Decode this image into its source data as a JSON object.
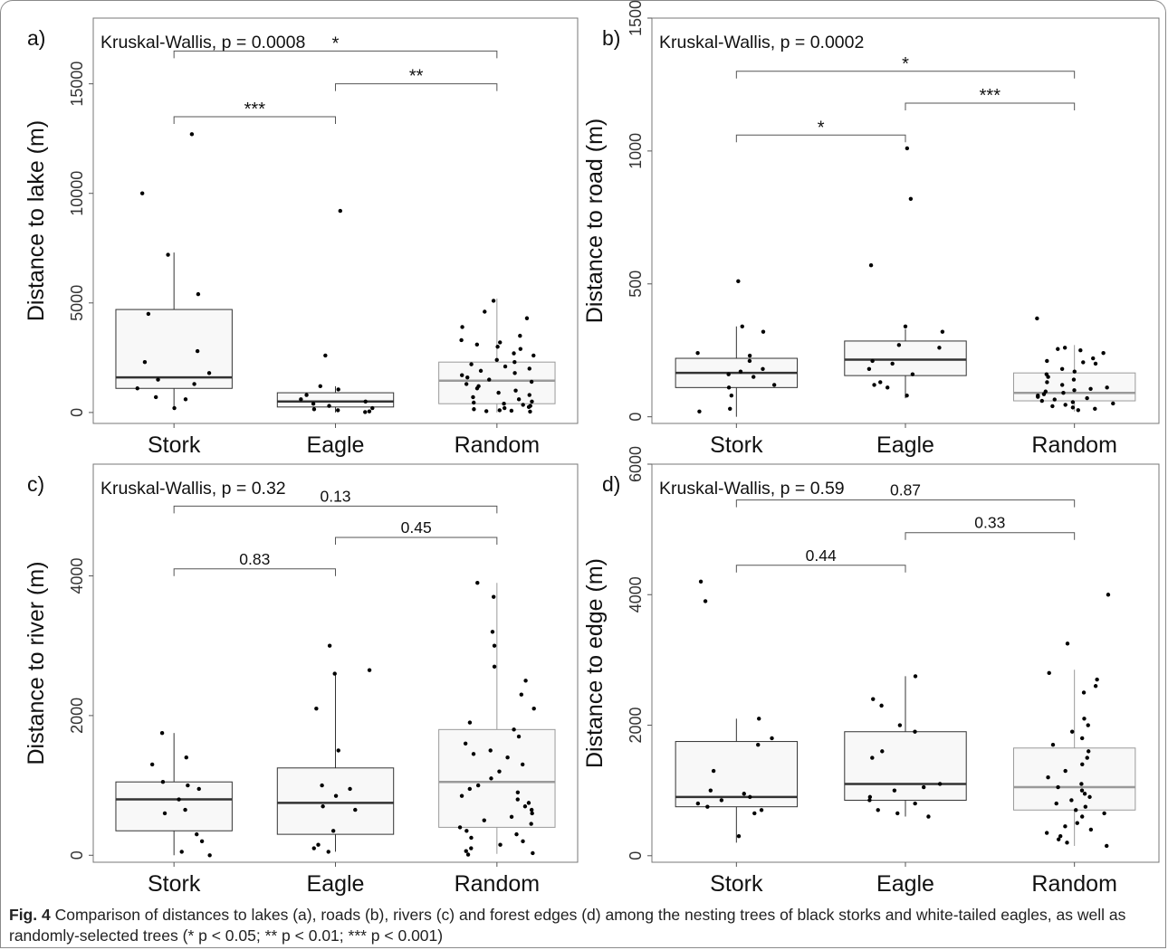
{
  "figure": {
    "caption_label": "Fig. 4",
    "caption_text": "Comparison of distances to lakes (a), roads (b), rivers (c) and forest edges (d) among the nesting trees of black storks and white-tailed eagles, as well as randomly-selected trees (* p < 0.05; ** p < 0.01; *** p < 0.001)"
  },
  "chart_data": [
    {
      "type": "box",
      "panel": "a)",
      "title": "Kruskal-Wallis, p = 0.0008",
      "ylabel": "Distance to lake (m)",
      "categories": [
        "Stork",
        "Eagle",
        "Random"
      ],
      "ylim": [
        -500,
        18000
      ],
      "yticks": [
        0,
        5000,
        10000,
        15000
      ],
      "box_colors": [
        "#333333",
        "#333333",
        "#9a9a9a"
      ],
      "boxes": [
        {
          "q1": 1100,
          "median": 1600,
          "q3": 4700,
          "whisker_low": 200,
          "whisker_high": 7300
        },
        {
          "q1": 250,
          "median": 500,
          "q3": 900,
          "whisker_low": 0,
          "whisker_high": 1200
        },
        {
          "q1": 400,
          "median": 1450,
          "q3": 2300,
          "whisker_low": 0,
          "whisker_high": 5200
        }
      ],
      "points": [
        [
          12700,
          10000,
          7200,
          5400,
          4500,
          2800,
          2300,
          1800,
          1500,
          1300,
          1100,
          700,
          600,
          200
        ],
        [
          9200,
          2600,
          1200,
          1050,
          800,
          600,
          500,
          400,
          300,
          200,
          150,
          100,
          50,
          20
        ],
        [
          5100,
          4600,
          4300,
          3900,
          3500,
          3300,
          3200,
          3100,
          3000,
          2900,
          2700,
          2600,
          2400,
          2300,
          2200,
          2100,
          2000,
          1900,
          1800,
          1700,
          1600,
          1500,
          1400,
          1300,
          1200,
          1100,
          1000,
          900,
          800,
          700,
          600,
          500,
          450,
          400,
          350,
          300,
          250,
          200,
          150,
          100,
          80,
          60,
          40
        ]
      ],
      "comparisons": [
        {
          "from": 0,
          "to": 1,
          "label": "***",
          "y": 13500
        },
        {
          "from": 1,
          "to": 2,
          "label": "**",
          "y": 15000
        },
        {
          "from": 0,
          "to": 2,
          "label": "*",
          "y": 16500
        }
      ]
    },
    {
      "type": "box",
      "panel": "b)",
      "title": "Kruskal-Wallis, p = 0.0002",
      "ylabel": "Distance to road (m)",
      "categories": [
        "Stork",
        "Eagle",
        "Random"
      ],
      "ylim": [
        -25,
        1500
      ],
      "yticks": [
        0,
        500,
        1000,
        1500
      ],
      "box_colors": [
        "#333333",
        "#333333",
        "#9a9a9a"
      ],
      "boxes": [
        {
          "q1": 110,
          "median": 165,
          "q3": 220,
          "whisker_low": 0,
          "whisker_high": 340
        },
        {
          "q1": 155,
          "median": 215,
          "q3": 285,
          "whisker_low": 70,
          "whisker_high": 330
        },
        {
          "q1": 60,
          "median": 90,
          "q3": 165,
          "whisker_low": 20,
          "whisker_high": 270
        }
      ],
      "points": [
        [
          510,
          340,
          320,
          240,
          230,
          210,
          180,
          170,
          160,
          150,
          120,
          110,
          80,
          30,
          20
        ],
        [
          1010,
          820,
          570,
          340,
          320,
          270,
          260,
          210,
          200,
          180,
          160,
          130,
          120,
          110,
          80
        ],
        [
          370,
          260,
          255,
          250,
          240,
          220,
          210,
          205,
          200,
          180,
          170,
          160,
          150,
          140,
          130,
          120,
          110,
          105,
          100,
          95,
          90,
          85,
          80,
          75,
          70,
          65,
          60,
          55,
          50,
          45,
          40,
          35,
          30,
          25
        ]
      ],
      "comparisons": [
        {
          "from": 0,
          "to": 1,
          "label": "*",
          "y": 1060
        },
        {
          "from": 1,
          "to": 2,
          "label": "***",
          "y": 1180
        },
        {
          "from": 0,
          "to": 2,
          "label": "*",
          "y": 1300
        }
      ]
    },
    {
      "type": "box",
      "panel": "c)",
      "title": "Kruskal-Wallis, p = 0.32",
      "ylabel": "Distance to river (m)",
      "categories": [
        "Stork",
        "Eagle",
        "Random"
      ],
      "ylim": [
        -100,
        5600
      ],
      "yticks": [
        0,
        2000,
        4000
      ],
      "box_colors": [
        "#333333",
        "#333333",
        "#9a9a9a"
      ],
      "boxes": [
        {
          "q1": 350,
          "median": 800,
          "q3": 1050,
          "whisker_low": 0,
          "whisker_high": 1750
        },
        {
          "q1": 300,
          "median": 750,
          "q3": 1250,
          "whisker_low": 50,
          "whisker_high": 2600
        },
        {
          "q1": 400,
          "median": 1050,
          "q3": 1800,
          "whisker_low": 20,
          "whisker_high": 3900
        }
      ],
      "points": [
        [
          1750,
          1400,
          1300,
          1050,
          1000,
          950,
          800,
          650,
          600,
          300,
          200,
          50,
          0
        ],
        [
          3000,
          2650,
          2600,
          2100,
          1500,
          1000,
          950,
          850,
          700,
          650,
          350,
          150,
          100,
          50
        ],
        [
          3900,
          3700,
          3200,
          3000,
          2700,
          2500,
          2300,
          2100,
          1900,
          1800,
          1700,
          1600,
          1500,
          1450,
          1400,
          1300,
          1200,
          1100,
          1000,
          950,
          900,
          850,
          800,
          750,
          700,
          650,
          600,
          550,
          500,
          450,
          400,
          350,
          300,
          250,
          200,
          150,
          100,
          60,
          30,
          10
        ]
      ],
      "comparisons": [
        {
          "from": 0,
          "to": 1,
          "label": "0.83",
          "y": 4100
        },
        {
          "from": 1,
          "to": 2,
          "label": "0.45",
          "y": 4550
        },
        {
          "from": 0,
          "to": 2,
          "label": "0.13",
          "y": 5000
        }
      ]
    },
    {
      "type": "box",
      "panel": "d)",
      "title": "Kruskal-Wallis, p = 0.59",
      "ylabel": "Distance to edge (m)",
      "categories": [
        "Stork",
        "Eagle",
        "Random"
      ],
      "ylim": [
        -100,
        6000
      ],
      "yticks": [
        0,
        2000,
        4000,
        6000
      ],
      "box_colors": [
        "#333333",
        "#333333",
        "#9a9a9a"
      ],
      "boxes": [
        {
          "q1": 750,
          "median": 900,
          "q3": 1750,
          "whisker_low": 200,
          "whisker_high": 2100
        },
        {
          "q1": 850,
          "median": 1100,
          "q3": 1900,
          "whisker_low": 600,
          "whisker_high": 2750
        },
        {
          "q1": 700,
          "median": 1050,
          "q3": 1650,
          "whisker_low": 150,
          "whisker_high": 2850
        }
      ],
      "points": [
        [
          4200,
          3900,
          2100,
          1800,
          1700,
          1300,
          1000,
          950,
          900,
          850,
          800,
          750,
          700,
          650,
          300
        ],
        [
          2750,
          2400,
          2300,
          2000,
          1900,
          1600,
          1500,
          1100,
          1050,
          1000,
          900,
          850,
          800,
          700,
          650,
          600
        ],
        [
          4000,
          3250,
          2800,
          2700,
          2600,
          2500,
          2100,
          2000,
          1900,
          1800,
          1700,
          1600,
          1500,
          1400,
          1300,
          1200,
          1100,
          1050,
          1000,
          950,
          900,
          850,
          800,
          750,
          700,
          650,
          600,
          500,
          450,
          400,
          350,
          300,
          250,
          200,
          150
        ]
      ],
      "comparisons": [
        {
          "from": 0,
          "to": 1,
          "label": "0.44",
          "y": 4450
        },
        {
          "from": 1,
          "to": 2,
          "label": "0.33",
          "y": 4950
        },
        {
          "from": 0,
          "to": 2,
          "label": "0.87",
          "y": 5450
        }
      ]
    }
  ]
}
